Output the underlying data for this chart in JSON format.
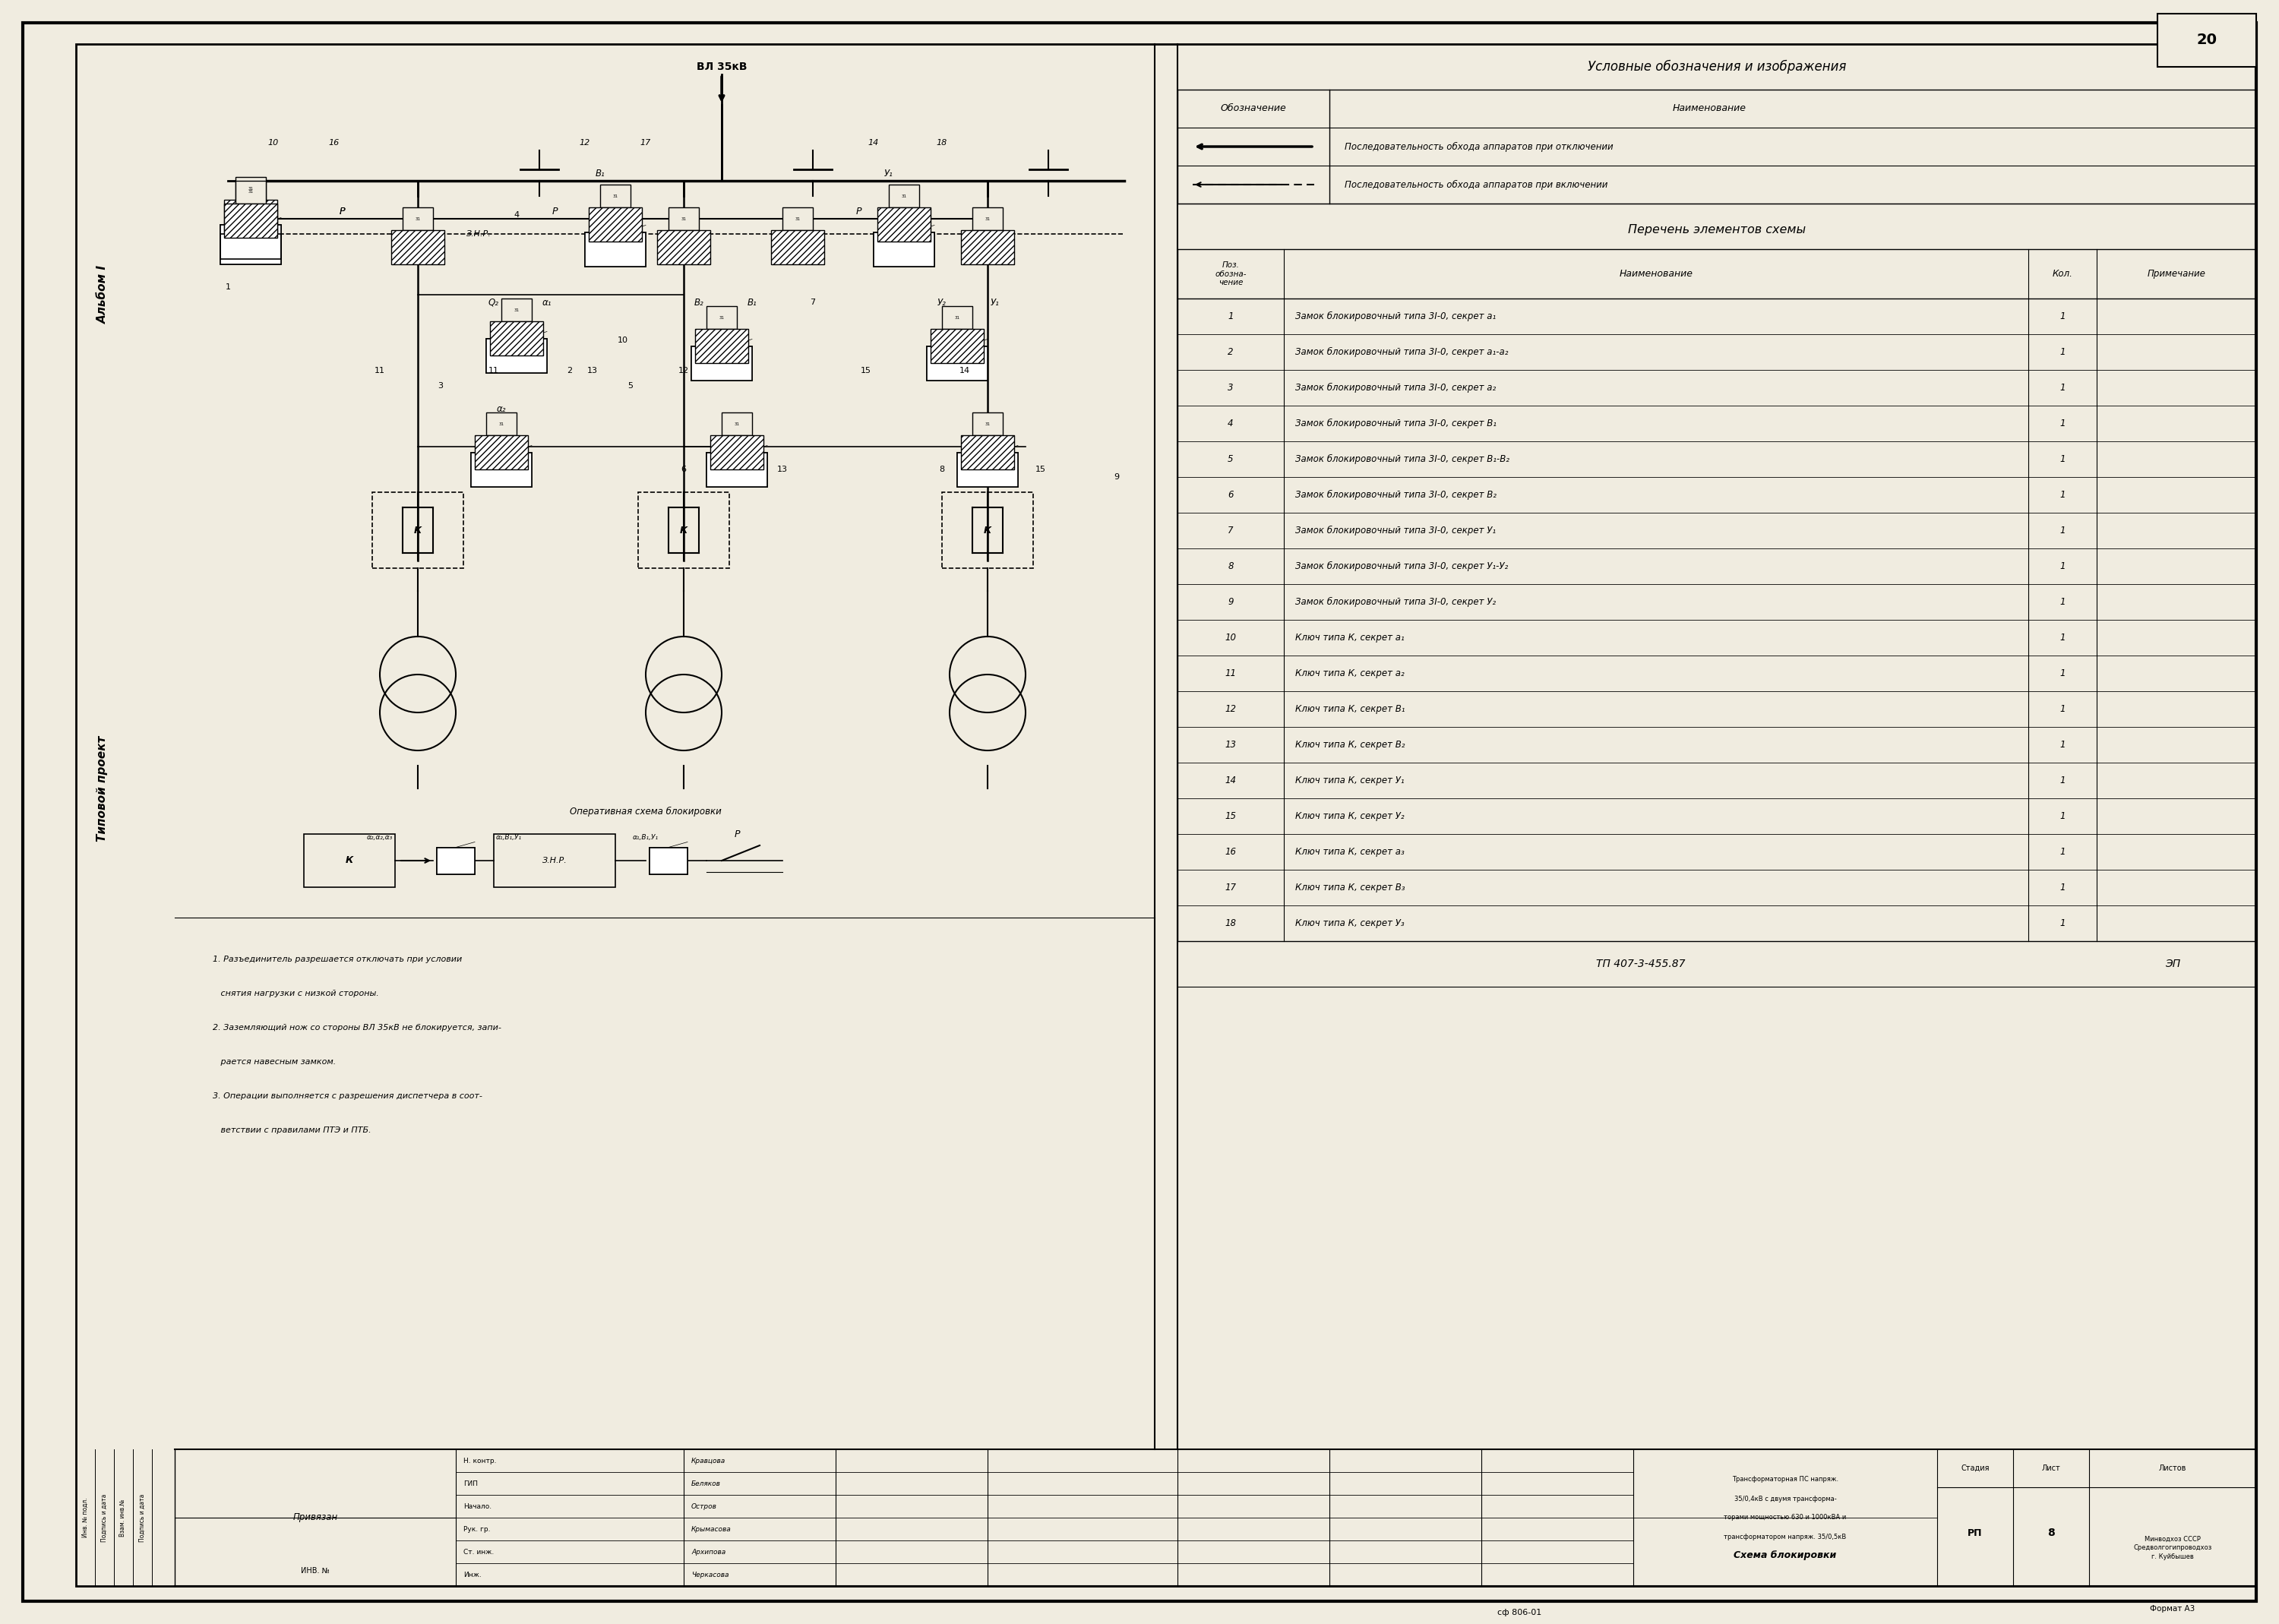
{
  "page_bg": "#f0ece0",
  "border_color": "#000000",
  "title_legend": "Условные обозначения и изображения",
  "legend_header1": "Обозначение",
  "legend_header2": "Наименование",
  "legend_row1": "Последовательность обхода аппаратов при отключении",
  "legend_row2": "Последовательность обхода аппаратов при включении",
  "table_title": "Перечень элементов схемы",
  "table_col1": "Поз.\nобозна-\nчение",
  "table_col2": "Наименование",
  "table_col3": "Кол.",
  "table_col4": "Примечание",
  "table_rows": [
    [
      "1",
      "Замок блокировочный типа 3I-0, секрет а₁",
      "1"
    ],
    [
      "2",
      "Замок блокировочный типа 3I-0, секрет а₁-а₂",
      "1"
    ],
    [
      "3",
      "Замок блокировочный типа 3I-0, секрет а₂",
      "1"
    ],
    [
      "4",
      "Замок блокировочный типа 3I-0, секрет В₁",
      "1"
    ],
    [
      "5",
      "Замок блокировочный типа 3I-0, секрет В₁-В₂",
      "1"
    ],
    [
      "6",
      "Замок блокировочный типа 3I-0, секрет В₂",
      "1"
    ],
    [
      "7",
      "Замок блокировочный типа 3I-0, секрет У₁",
      "1"
    ],
    [
      "8",
      "Замок блокировочный типа 3I-0, секрет У₁-У₂",
      "1"
    ],
    [
      "9",
      "Замок блокировочный типа 3I-0, секрет У₂",
      "1"
    ],
    [
      "10",
      "Ключ типа К, секрет а₁",
      "1"
    ],
    [
      "11",
      "Ключ типа К, секрет а₂",
      "1"
    ],
    [
      "12",
      "Ключ типа К, секрет В₁",
      "1"
    ],
    [
      "13",
      "Ключ типа К, секрет В₂",
      "1"
    ],
    [
      "14",
      "Ключ типа К, секрет У₁",
      "1"
    ],
    [
      "15",
      "Ключ типа К, секрет У₂",
      "1"
    ],
    [
      "16",
      "Ключ типа К, секрет а₃",
      "1"
    ],
    [
      "17",
      "Ключ типа К, секрет В₃",
      "1"
    ],
    [
      "18",
      "Ключ типа К, секрет У₃",
      "1"
    ]
  ],
  "bottom_text1": "ТП 407-3-455.87",
  "bottom_text2": "ЭП",
  "stamp_title": "Схема блокировки",
  "stamp_org": "Минводхоз СССР\nСредволгогипроводхоз\nг. Куйбышев",
  "stamp_stage": "Стадия",
  "stamp_sheet": "Лист",
  "stamp_sheets": "Листов",
  "stamp_stage_val": "РП",
  "stamp_sheet_val": "8",
  "page_num": "20",
  "side_text1": "Альбом I",
  "side_text2": "Типовой проект",
  "notes": [
    "1. Разъединитель разрешается отключать при условии",
    "   снятия нагрузки с низкой стороны.",
    "2. Заземляющий нож со стороны ВЛ 35кВ не блокируется, запи-",
    "   рается навесным замком.",
    "3. Операции выполняется с разрешения диспетчера в соот-",
    "   ветствии с правилами ПТЭ и ПТБ."
  ],
  "op_scheme_title": "Оперативная схема блокировки",
  "vl35_label": "ВЛ 35кВ"
}
